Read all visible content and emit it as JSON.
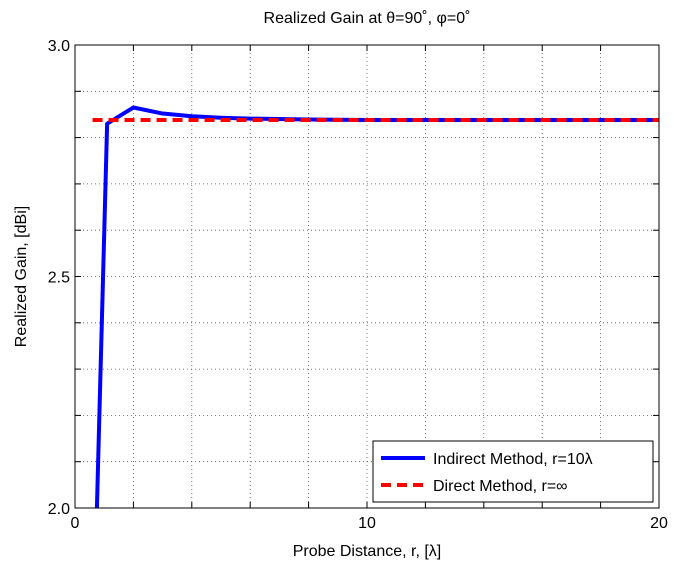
{
  "chart_data": {
    "type": "line",
    "title": "Realized Gain at θ=90˚, φ=0˚",
    "xlabel": "Probe Distance, r, [λ]",
    "ylabel": "Realized Gain, [dBi]",
    "xlim": [
      0,
      20
    ],
    "ylim": [
      2.0,
      3.0
    ],
    "xticks": [
      "0",
      "10",
      "20"
    ],
    "yticks": [
      "2.0",
      "2.5",
      "3.0"
    ],
    "grid": true,
    "legend_position": "bottom-right",
    "series": [
      {
        "name": "Indirect Method, r=10λ",
        "color": "#0000ff",
        "style": "solid",
        "x": [
          0.75,
          1.1,
          2,
          3,
          4,
          5,
          6,
          8,
          10,
          12,
          14,
          16,
          18,
          20
        ],
        "y": [
          2.0,
          2.83,
          2.865,
          2.852,
          2.846,
          2.843,
          2.841,
          2.839,
          2.838,
          2.838,
          2.838,
          2.838,
          2.838,
          2.838
        ]
      },
      {
        "name": "Direct Method, r=∞",
        "color": "#ff0000",
        "style": "dashed",
        "x": [
          0.6,
          20
        ],
        "y": [
          2.838,
          2.838
        ]
      }
    ]
  }
}
